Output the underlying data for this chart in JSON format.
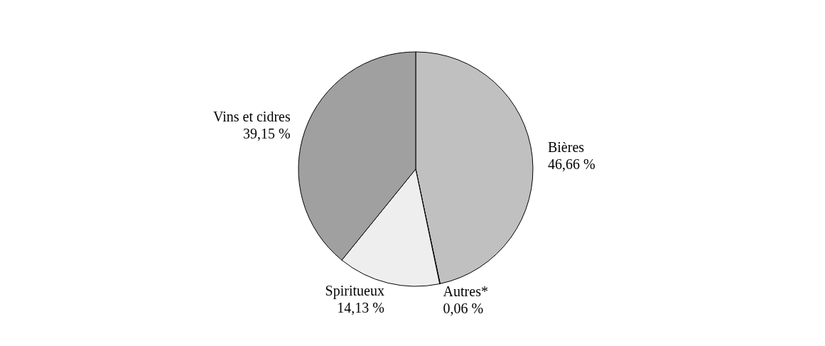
{
  "chart_data": {
    "type": "pie",
    "categories": [
      "Bières",
      "Autres*",
      "Spiritueux",
      "Vins et cidres"
    ],
    "values": [
      46.66,
      0.06,
      14.13,
      39.15
    ],
    "colors": [
      "#c0c0c0",
      "#707070",
      "#eeeeee",
      "#a0a0a0"
    ],
    "value_labels": [
      "46,66  %",
      "0,06 %",
      "14,13 %",
      "39,15 %"
    ]
  }
}
